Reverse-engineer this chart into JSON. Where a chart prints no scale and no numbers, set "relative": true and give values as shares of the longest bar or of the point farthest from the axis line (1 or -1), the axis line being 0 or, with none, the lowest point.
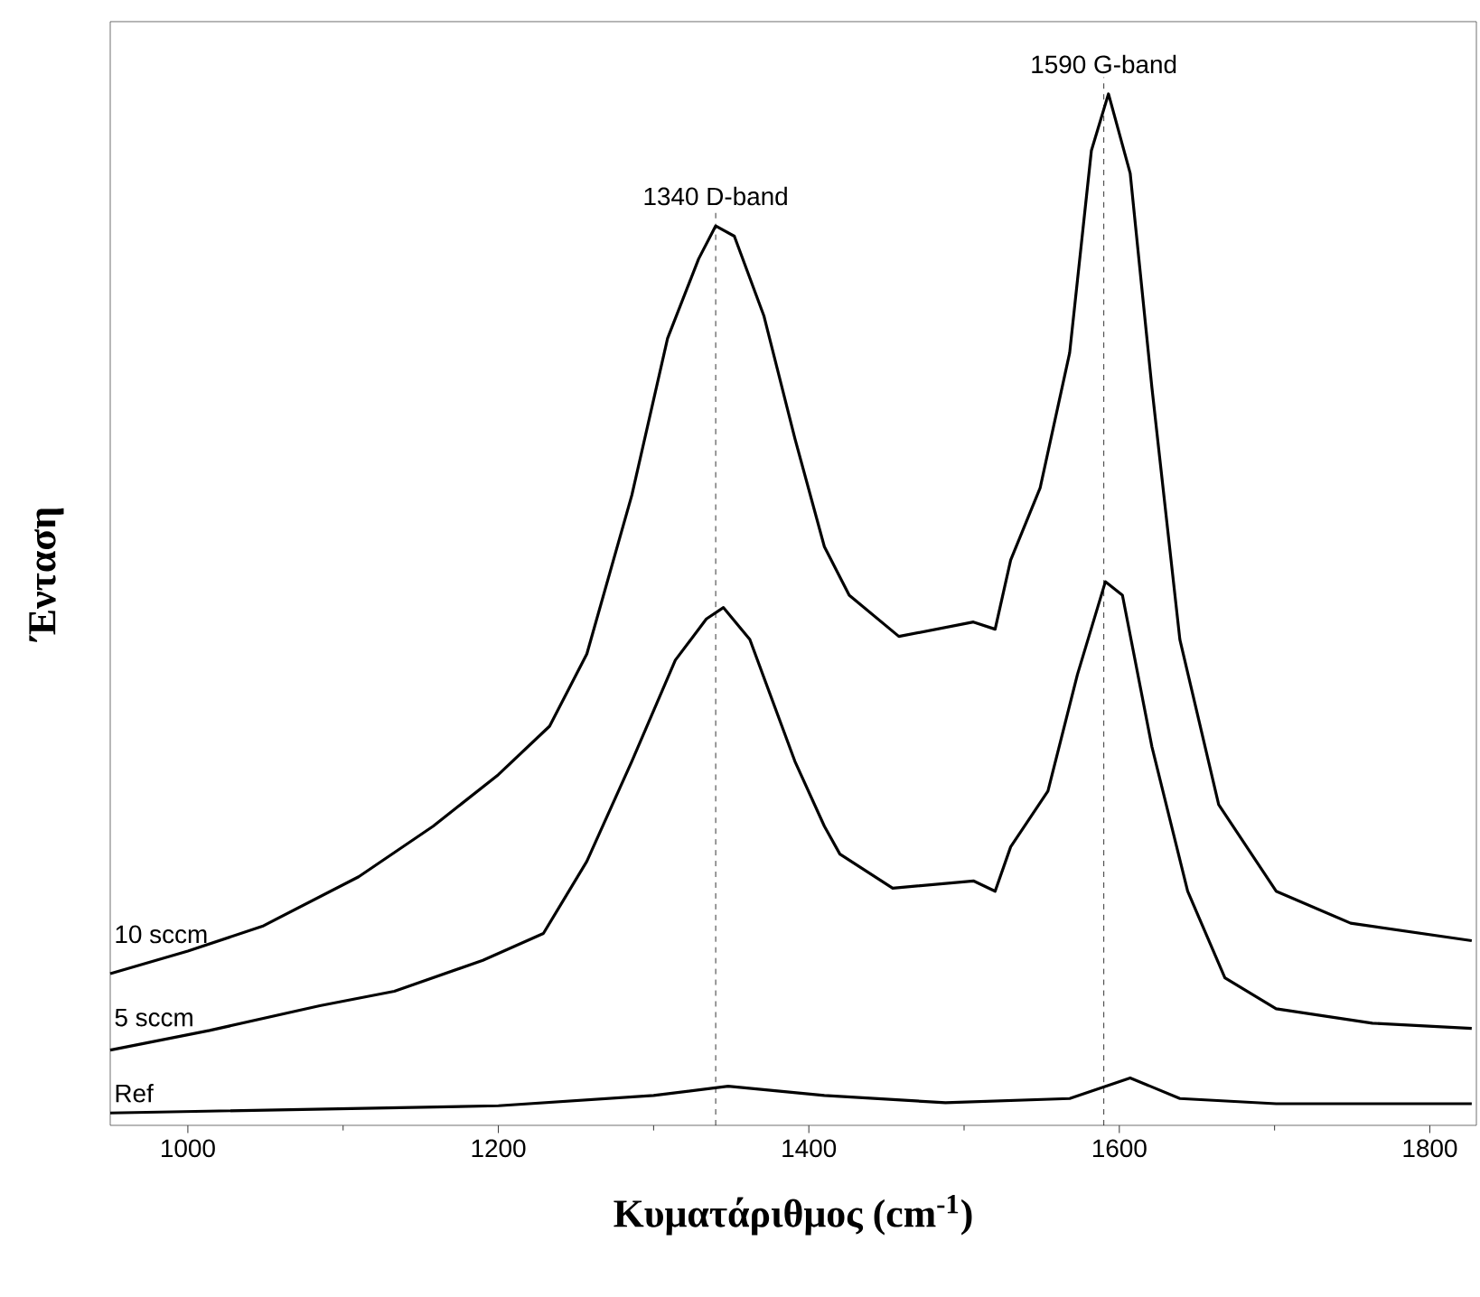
{
  "chart_data": {
    "type": "line",
    "relative": true,
    "xlabel": "Κυματάριθμος (cm$^{-1}$)",
    "ylabel": "Ένταση",
    "xlim": [
      950,
      1830
    ],
    "xticks": [
      1000,
      1200,
      1400,
      1600,
      1800
    ],
    "series": [
      {
        "name": "10 sccm",
        "color": "#000000",
        "x": [
          950,
          1000,
          1048,
          1110,
          1158,
          1200,
          1233,
          1257,
          1286,
          1309,
          1329,
          1340,
          1352,
          1371,
          1391,
          1410,
          1426,
          1458,
          1506,
          1520,
          1530,
          1549,
          1568,
          1582,
          1593,
          1607,
          1621,
          1639,
          1664,
          1701,
          1749,
          1827
        ],
        "values": [
          0.147,
          0.169,
          0.193,
          0.241,
          0.29,
          0.34,
          0.387,
          0.457,
          0.611,
          0.763,
          0.84,
          0.872,
          0.862,
          0.785,
          0.666,
          0.561,
          0.514,
          0.474,
          0.488,
          0.481,
          0.548,
          0.618,
          0.749,
          0.945,
          1,
          0.923,
          0.715,
          0.471,
          0.311,
          0.227,
          0.196,
          0.179
        ]
      },
      {
        "name": "5 sccm",
        "color": "#000000",
        "x": [
          950,
          1014,
          1085,
          1133,
          1190,
          1229,
          1257,
          1286,
          1314,
          1334,
          1345,
          1362,
          1391,
          1410,
          1420,
          1454,
          1506,
          1520,
          1530,
          1554,
          1573,
          1591,
          1602,
          1621,
          1644,
          1668,
          1701,
          1763,
          1827
        ],
        "values": [
          0.073,
          0.092,
          0.116,
          0.13,
          0.16,
          0.186,
          0.256,
          0.353,
          0.451,
          0.491,
          0.502,
          0.471,
          0.353,
          0.29,
          0.263,
          0.23,
          0.237,
          0.227,
          0.27,
          0.324,
          0.437,
          0.527,
          0.514,
          0.367,
          0.227,
          0.143,
          0.113,
          0.099,
          0.094
        ]
      },
      {
        "name": "Ref",
        "color": "#000000",
        "x": [
          950,
          1200,
          1300,
          1348,
          1410,
          1488,
          1568,
          1607,
          1639,
          1701,
          1827
        ],
        "values": [
          0.012,
          0.019,
          0.029,
          0.038,
          0.029,
          0.022,
          0.026,
          0.046,
          0.026,
          0.021,
          0.021
        ]
      }
    ],
    "ref_lines": [
      {
        "axis": "x",
        "value": 1340,
        "label": "1340 D-band",
        "color": "#000000",
        "line_style": "dashed"
      },
      {
        "axis": "x",
        "value": 1590,
        "label": "1590 G-band",
        "color": "#000000",
        "line_style": "dashed"
      }
    ]
  }
}
